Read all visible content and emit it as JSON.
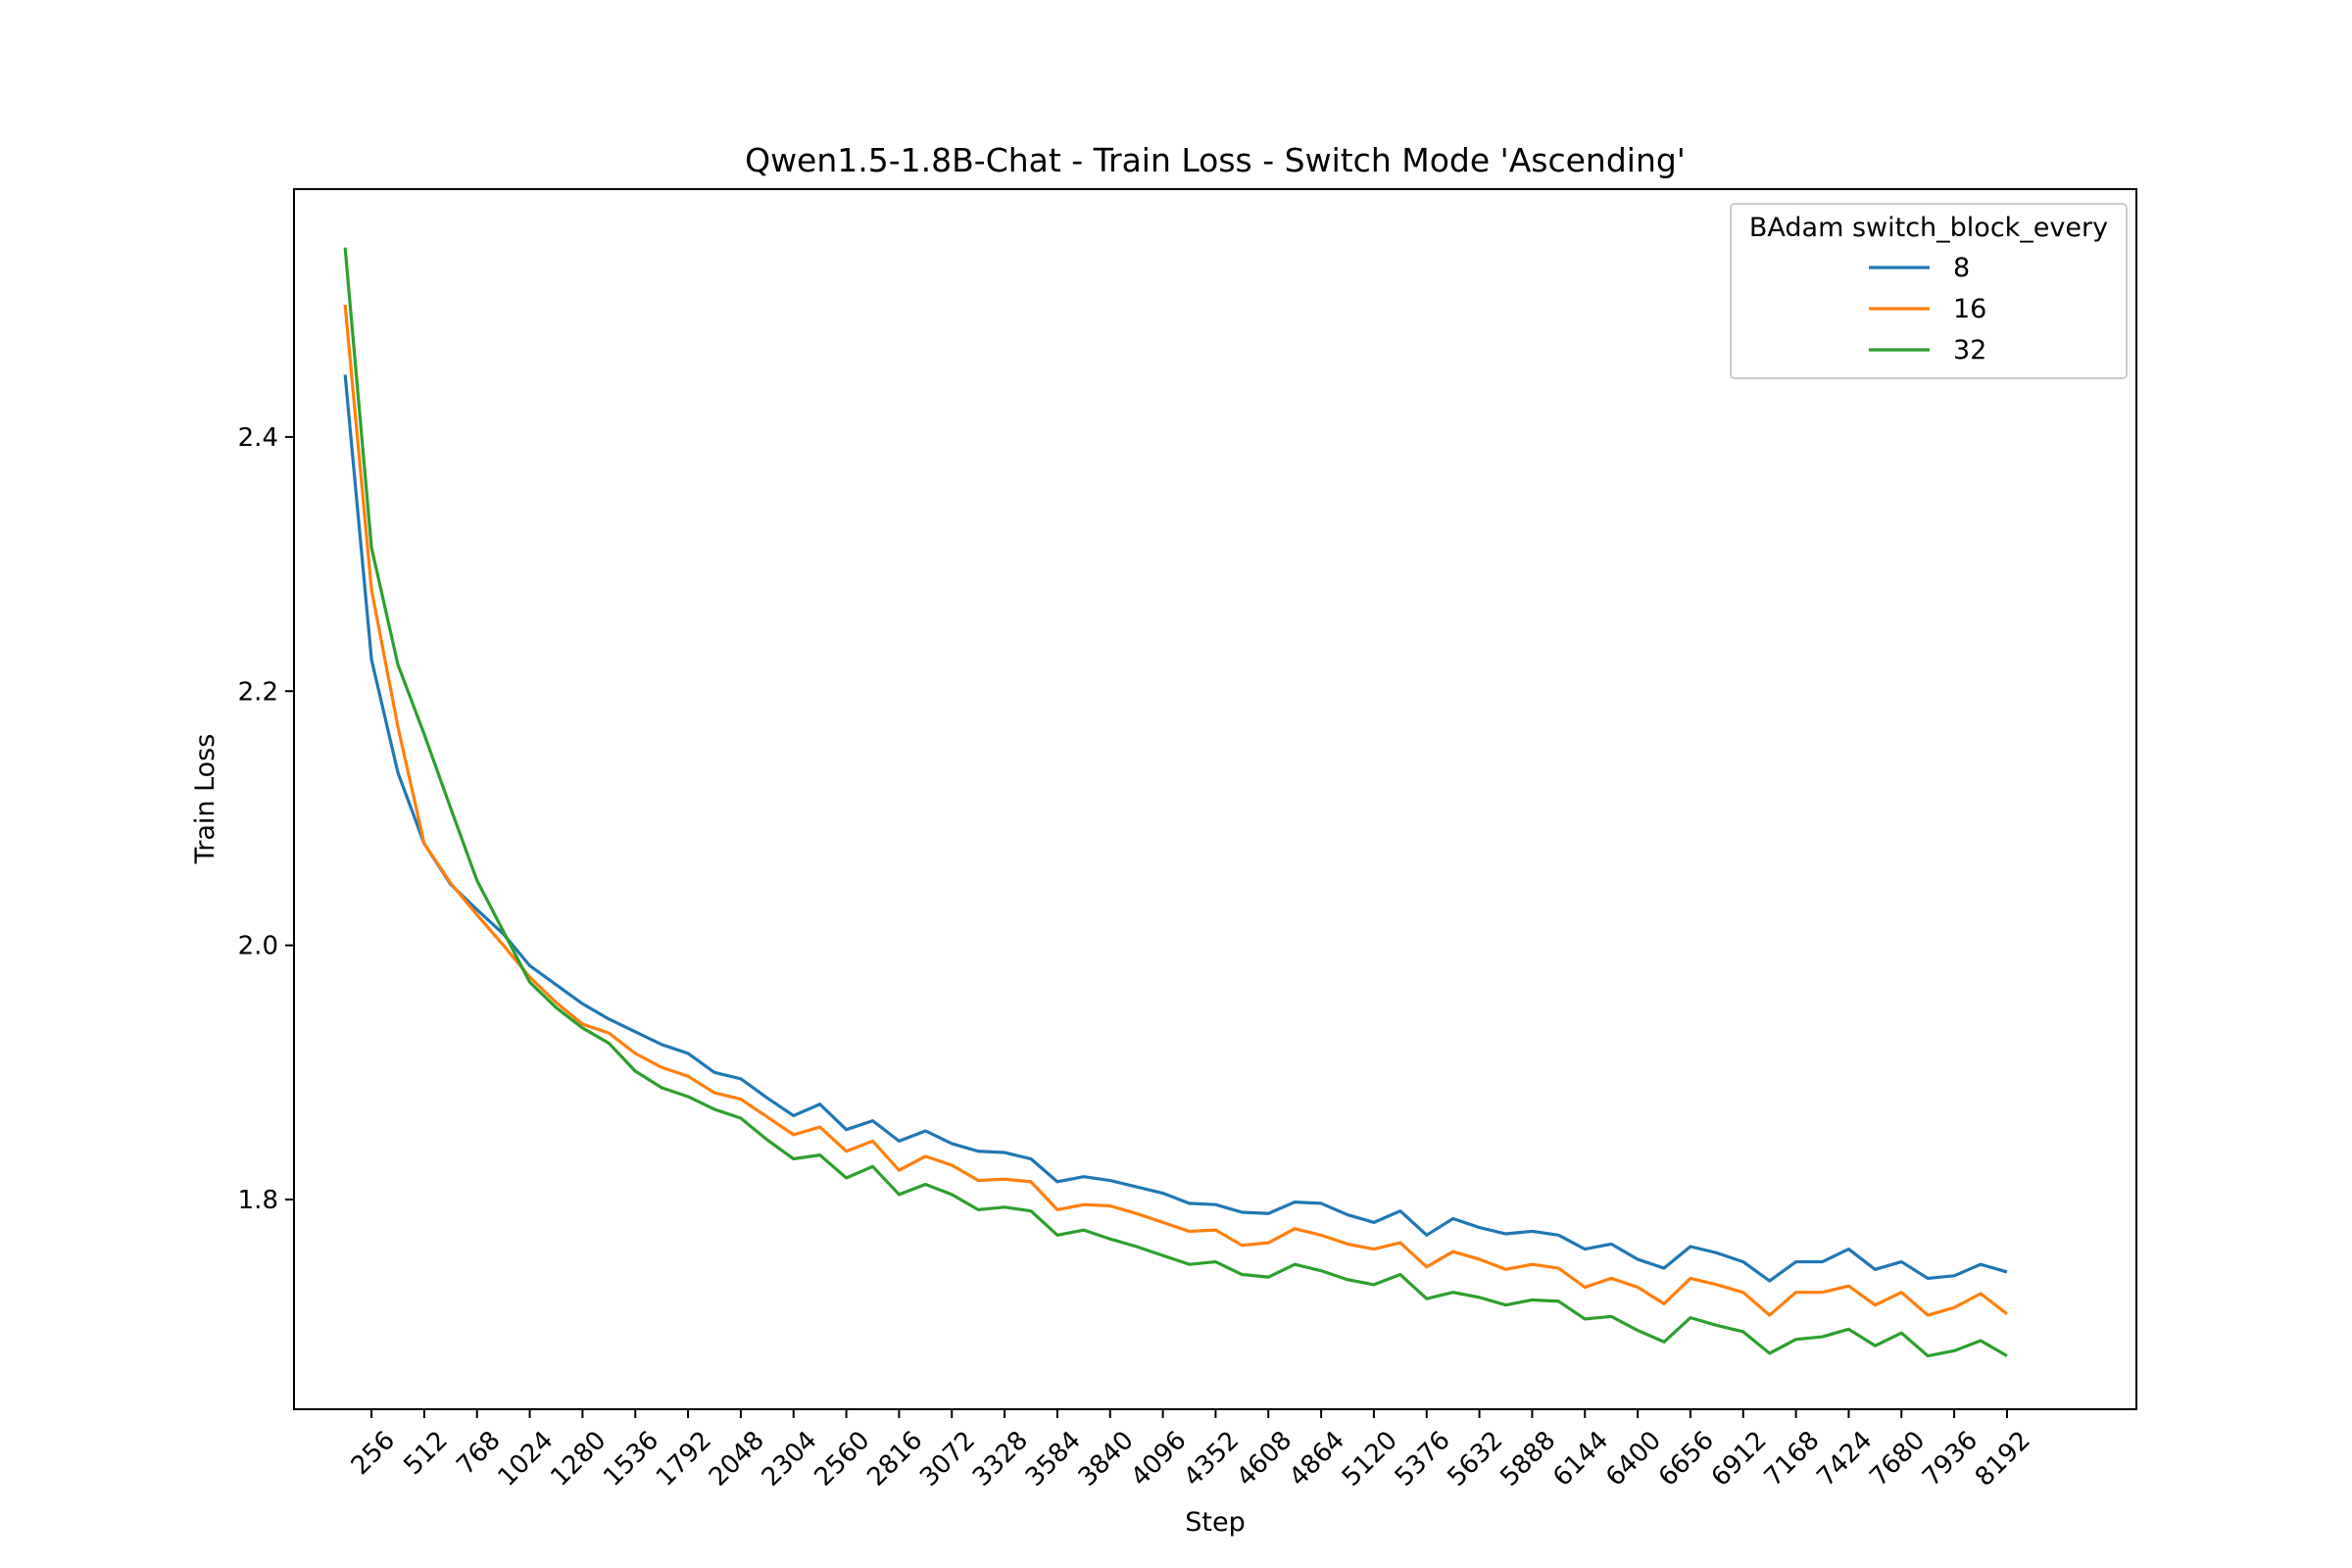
{
  "chart_data": {
    "type": "line",
    "title": "Qwen1.5-1.8B-Chat - Train Loss - Switch Mode 'Ascending'",
    "xlabel": "Step",
    "ylabel": "Train Loss",
    "xlim": [
      -120,
      8820
    ],
    "ylim": [
      1.635,
      2.595
    ],
    "x_ticks": [
      256,
      512,
      768,
      1024,
      1280,
      1536,
      1792,
      2048,
      2304,
      2560,
      2816,
      3072,
      3328,
      3584,
      3840,
      4096,
      4352,
      4608,
      4864,
      5120,
      5376,
      5632,
      5888,
      6144,
      6400,
      6656,
      6912,
      7168,
      7424,
      7680,
      7936,
      8192
    ],
    "x_tick_labels": [
      "256",
      "512",
      "768",
      "1024",
      "1280",
      "1536",
      "1792",
      "2048",
      "2304",
      "2560",
      "2816",
      "3072",
      "3328",
      "3584",
      "3840",
      "4096",
      "4352",
      "4608",
      "4864",
      "5120",
      "5376",
      "5632",
      "5888",
      "6144",
      "6400",
      "6656",
      "6912",
      "7168",
      "7424",
      "7680",
      "7936",
      "8192"
    ],
    "y_ticks": [
      1.8,
      2.0,
      2.2,
      2.4
    ],
    "y_tick_labels": [
      "1.8",
      "2.0",
      "2.2",
      "2.4"
    ],
    "grid": false,
    "legend": {
      "title": "BAdam switch_block_every",
      "placement": "upper-right"
    },
    "x": [
      128,
      256,
      384,
      512,
      640,
      768,
      896,
      1024,
      1152,
      1280,
      1408,
      1536,
      1664,
      1792,
      1920,
      2048,
      2176,
      2304,
      2432,
      2560,
      2688,
      2816,
      2944,
      3072,
      3200,
      3328,
      3456,
      3584,
      3712,
      3840,
      3968,
      4096,
      4224,
      4352,
      4480,
      4608,
      4736,
      4864,
      4992,
      5120,
      5248,
      5376,
      5504,
      5632,
      5760,
      5888,
      6016,
      6144,
      6272,
      6400,
      6528,
      6656,
      6784,
      6912,
      7040,
      7168,
      7296,
      7424,
      7552,
      7680,
      7808,
      7936,
      8064,
      8192
    ],
    "series": [
      {
        "name": "8",
        "color": "#1f77b4",
        "values": [
          2.449,
          2.225,
          2.136,
          2.08,
          2.048,
          2.028,
          2.009,
          1.984,
          1.969,
          1.954,
          1.942,
          1.932,
          1.922,
          1.915,
          1.9,
          1.895,
          1.88,
          1.866,
          1.875,
          1.855,
          1.862,
          1.846,
          1.854,
          1.844,
          1.838,
          1.837,
          1.832,
          1.814,
          1.818,
          1.815,
          1.81,
          1.805,
          1.797,
          1.796,
          1.79,
          1.789,
          1.798,
          1.797,
          1.788,
          1.782,
          1.791,
          1.772,
          1.785,
          1.778,
          1.773,
          1.775,
          1.772,
          1.761,
          1.765,
          1.753,
          1.746,
          1.763,
          1.758,
          1.751,
          1.736,
          1.751,
          1.751,
          1.761,
          1.745,
          1.751,
          1.738,
          1.74,
          1.749,
          1.743
        ]
      },
      {
        "name": "16",
        "color": "#ff7f0e",
        "values": [
          2.504,
          2.28,
          2.172,
          2.08,
          2.049,
          2.024,
          2.0,
          1.975,
          1.955,
          1.938,
          1.931,
          1.915,
          1.904,
          1.897,
          1.884,
          1.879,
          1.865,
          1.851,
          1.857,
          1.838,
          1.846,
          1.823,
          1.834,
          1.827,
          1.815,
          1.816,
          1.814,
          1.792,
          1.796,
          1.795,
          1.789,
          1.782,
          1.775,
          1.776,
          1.764,
          1.766,
          1.777,
          1.772,
          1.765,
          1.761,
          1.766,
          1.747,
          1.759,
          1.753,
          1.745,
          1.749,
          1.746,
          1.731,
          1.738,
          1.731,
          1.718,
          1.738,
          1.733,
          1.727,
          1.709,
          1.727,
          1.727,
          1.732,
          1.717,
          1.727,
          1.709,
          1.715,
          1.726,
          1.71
        ]
      },
      {
        "name": "32",
        "color": "#2ca02c",
        "values": [
          2.549,
          2.313,
          2.221,
          2.166,
          2.108,
          2.051,
          2.011,
          1.971,
          1.951,
          1.935,
          1.923,
          1.901,
          1.888,
          1.881,
          1.871,
          1.864,
          1.847,
          1.832,
          1.835,
          1.817,
          1.826,
          1.804,
          1.812,
          1.804,
          1.792,
          1.794,
          1.791,
          1.772,
          1.776,
          1.769,
          1.763,
          1.756,
          1.749,
          1.751,
          1.741,
          1.739,
          1.749,
          1.744,
          1.737,
          1.733,
          1.741,
          1.722,
          1.727,
          1.723,
          1.717,
          1.721,
          1.72,
          1.706,
          1.708,
          1.697,
          1.688,
          1.707,
          1.701,
          1.696,
          1.679,
          1.69,
          1.692,
          1.698,
          1.685,
          1.695,
          1.677,
          1.681,
          1.689,
          1.677
        ]
      }
    ]
  }
}
